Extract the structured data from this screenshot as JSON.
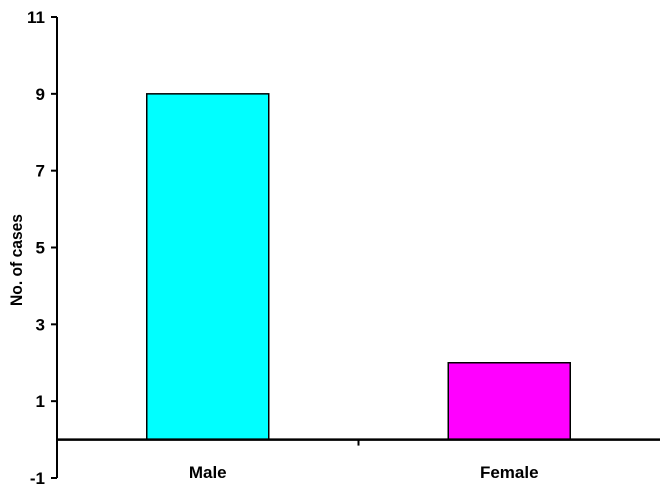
{
  "chart_data": {
    "type": "bar",
    "title": "",
    "xlabel": "",
    "ylabel": "No. of cases",
    "categories": [
      "Male",
      "Female"
    ],
    "values": [
      9,
      2
    ],
    "colors": [
      "#00ffff",
      "#ff00ff"
    ],
    "ylim": [
      -1,
      11
    ],
    "yticks": [
      -1,
      1,
      3,
      5,
      7,
      9,
      11
    ],
    "ytick_labels": [
      "-1",
      "1",
      "3",
      "5",
      "7",
      "9",
      "11"
    ],
    "grid": false,
    "legend": "none"
  }
}
